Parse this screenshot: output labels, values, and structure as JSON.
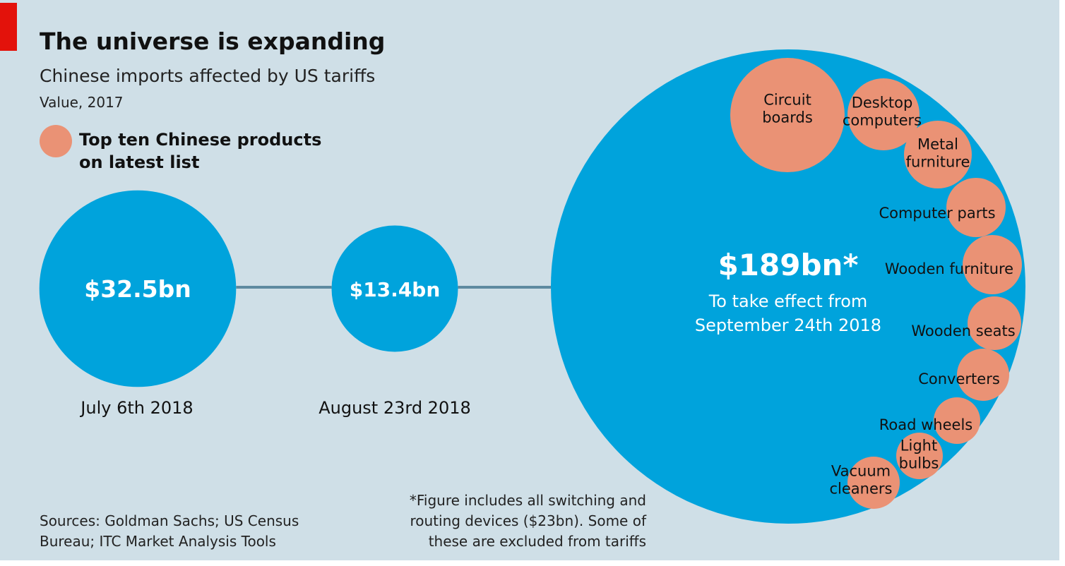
{
  "title": "The universe is expanding",
  "subtitle": "Chinese imports affected by US tariffs",
  "unit": "Value, 2017",
  "legend": {
    "line1": "Top ten Chinese products",
    "line2": "on latest list"
  },
  "colors": {
    "background": "#cfdfe7",
    "circle": "#00a3dc",
    "product": "#ea9275",
    "connector": "#5e8aa0",
    "accent": "#e3120b"
  },
  "chart_data": {
    "type": "bubble",
    "title": "The universe is expanding",
    "subtitle": "Chinese imports affected by US tariffs",
    "unit": "Value, 2017",
    "series": [
      {
        "date": "July 6th 2018",
        "value": 32.5,
        "label": "$32.5bn"
      },
      {
        "date": "August 23rd 2018",
        "value": 13.4,
        "label": "$13.4bn"
      },
      {
        "date": "",
        "value": 189,
        "label": "$189bn*",
        "note_line1": "To take effect from",
        "note_line2": "September 24th 2018"
      }
    ],
    "products": [
      {
        "line1": "Circuit",
        "line2": "boards"
      },
      {
        "line1": "Desktop",
        "line2": "computers"
      },
      {
        "line1": "Metal",
        "line2": "furniture"
      },
      {
        "line1": "Computer parts",
        "line2": ""
      },
      {
        "line1": "Wooden furniture",
        "line2": ""
      },
      {
        "line1": "Wooden seats",
        "line2": ""
      },
      {
        "line1": "Converters",
        "line2": ""
      },
      {
        "line1": "Road wheels",
        "line2": ""
      },
      {
        "line1": "Light",
        "line2": "bulbs"
      },
      {
        "line1": "Vacuum",
        "line2": "cleaners"
      }
    ]
  },
  "footnote": {
    "line1": "*Figure includes all switching and",
    "line2": "routing devices ($23bn). Some of",
    "line3": "these are excluded from tariffs"
  },
  "sources": {
    "line1": "Sources: Goldman Sachs; US Census",
    "line2": "Bureau; ITC Market Analysis Tools"
  }
}
